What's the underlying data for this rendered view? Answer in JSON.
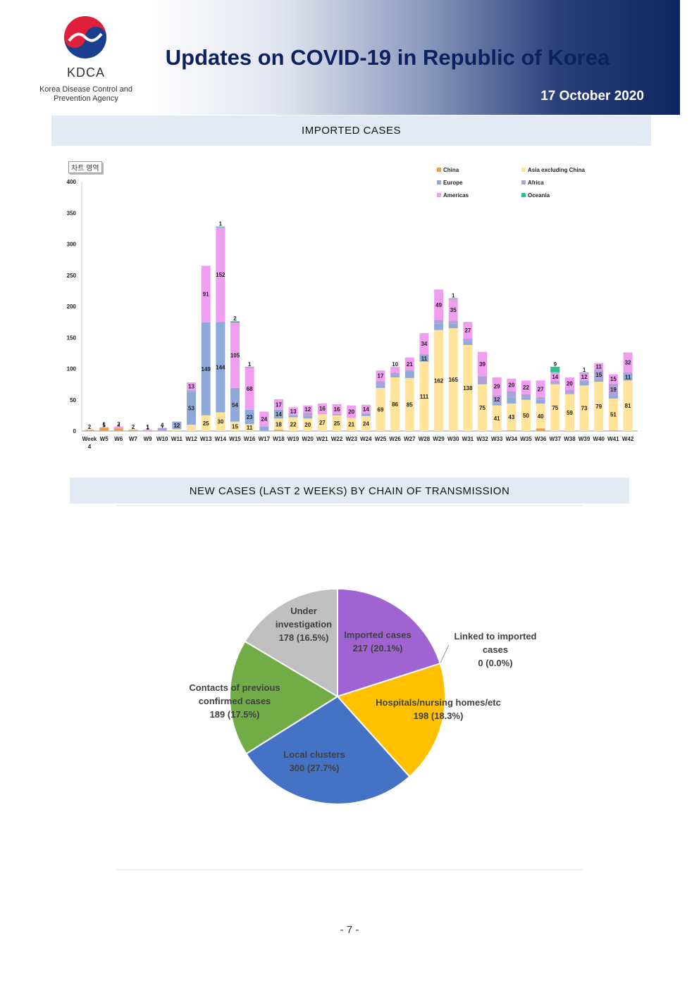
{
  "header": {
    "title": "Updates on COVID-19 in Republic of Korea",
    "date": "17 October 2020",
    "org_abbr": "KDCA",
    "org_name_line1": "Korea Disease Control and",
    "org_name_line2": "Prevention Agency",
    "colors": {
      "title": "#0c2160",
      "band": "#e3eaf3",
      "gradient_dark": "#0f2460"
    }
  },
  "section1": {
    "title": "IMPORTED  CASES",
    "tag": "차트 영역"
  },
  "section2": {
    "title": "NEW  CASES  (LAST  2  WEEKS)  BY  CHAIN  OF  TRANSMISSION"
  },
  "page_number": "- 7 -",
  "chart_data": [
    {
      "type": "bar",
      "stacked": true,
      "ylim": [
        0,
        400
      ],
      "yticks": [
        0,
        50,
        100,
        150,
        200,
        250,
        300,
        350,
        400
      ],
      "grid": false,
      "legend": "top-right",
      "categories": [
        "Week 4",
        "W5",
        "W6",
        "W7",
        "W9",
        "W10",
        "W11",
        "W12",
        "W13",
        "W14",
        "W15",
        "W16",
        "W17",
        "W18",
        "W19",
        "W20",
        "W21",
        "W22",
        "W23",
        "W24",
        "W25",
        "W26",
        "W27",
        "W28",
        "W29",
        "W30",
        "W31",
        "W32",
        "W33",
        "W34",
        "W35",
        "W36",
        "W37",
        "W38",
        "W39",
        "W40",
        "W41",
        "W42"
      ],
      "series": [
        {
          "name": "China",
          "color": "#f0a040",
          "values": [
            2,
            5,
            4,
            2,
            1,
            1,
            0,
            0,
            0,
            0,
            0,
            0,
            1,
            2,
            0,
            0,
            0,
            0,
            0,
            0,
            0,
            0,
            0,
            0,
            0,
            0,
            0,
            0,
            0,
            1,
            0,
            4,
            0,
            0,
            0,
            0,
            1,
            0
          ]
        },
        {
          "name": "Asia excluding China",
          "color": "#ffe49a",
          "values": [
            0,
            0,
            0,
            0,
            0,
            0,
            3,
            10,
            25,
            30,
            15,
            11,
            0,
            18,
            22,
            20,
            27,
            25,
            21,
            24,
            69,
            86,
            85,
            111,
            162,
            165,
            138,
            75,
            41,
            43,
            50,
            40,
            75,
            59,
            73,
            79,
            51,
            81
          ]
        },
        {
          "name": "Europe",
          "color": "#8eaadb",
          "values": [
            0,
            0,
            0,
            0,
            0,
            0,
            12,
            53,
            149,
            144,
            54,
            23,
            6,
            14,
            3,
            4,
            1,
            2,
            0,
            4,
            4,
            4,
            10,
            11,
            10,
            7,
            6,
            3,
            4,
            10,
            4,
            6,
            1,
            1,
            8,
            4,
            5,
            11
          ]
        },
        {
          "name": "Africa",
          "color": "#b09fd8",
          "values": [
            0,
            0,
            0,
            0,
            0,
            4,
            0,
            2,
            0,
            1,
            0,
            0,
            0,
            0,
            0,
            5,
            0,
            0,
            0,
            0,
            7,
            3,
            2,
            1,
            6,
            5,
            4,
            10,
            12,
            10,
            5,
            4,
            4,
            6,
            0,
            15,
            19,
            2
          ]
        },
        {
          "name": "Americas",
          "color": "#f09ef0",
          "values": [
            0,
            1,
            3,
            0,
            1,
            0,
            0,
            13,
            91,
            152,
            105,
            68,
            24,
            17,
            13,
            12,
            16,
            16,
            20,
            14,
            17,
            10,
            21,
            34,
            49,
            35,
            27,
            39,
            29,
            20,
            22,
            27,
            14,
            20,
            12,
            11,
            15,
            32
          ]
        },
        {
          "name": "Oceania",
          "color": "#2bbf94",
          "values": [
            0,
            0,
            0,
            0,
            0,
            0,
            0,
            0,
            0,
            1,
            2,
            1,
            0,
            0,
            0,
            0,
            0,
            0,
            0,
            0,
            0,
            0,
            0,
            0,
            0,
            1,
            0,
            0,
            0,
            0,
            0,
            0,
            9,
            0,
            1,
            0,
            0,
            0
          ]
        }
      ]
    },
    {
      "type": "pie",
      "slices": [
        {
          "label": "Imported cases",
          "value_text": "217 (20.1%)",
          "value": 217,
          "color": "#a064d2"
        },
        {
          "label": "Linked to imported cases",
          "value_text": "0 (0.0%)",
          "value": 0,
          "color": "#f0a040"
        },
        {
          "label": "Hospitals/nursing homes/etc",
          "value_text": "198 (18.3%)",
          "value": 198,
          "color": "#ffc000"
        },
        {
          "label": "Local clusters",
          "value_text": "300 (27.7%)",
          "value": 300,
          "color": "#4472c4"
        },
        {
          "label": "Contacts of previous confirmed cases",
          "value_text": "189 (17.5%)",
          "value": 189,
          "color": "#70ad47"
        },
        {
          "label": "Under investigation",
          "value_text": "178 (16.5%)",
          "value": 178,
          "color": "#bfbfbf"
        }
      ]
    }
  ]
}
